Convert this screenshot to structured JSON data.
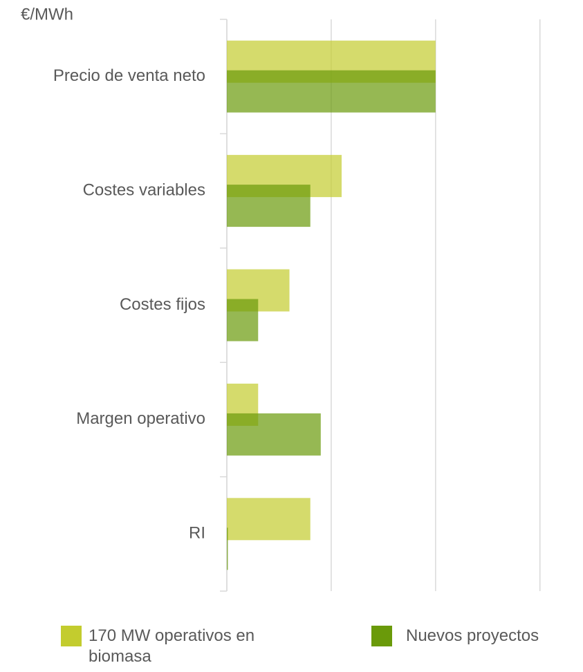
{
  "chart_data": {
    "type": "barh",
    "y_axis_label": "€/MWh",
    "categories": [
      "Precio de venta neto",
      "Costes variables",
      "Costes fijos",
      "Margen operativo",
      "RI"
    ],
    "series": [
      {
        "name": "170 MW operativos en biomasa",
        "color": "#c3cc2e",
        "values": [
          2.0,
          1.1,
          0.6,
          0.3,
          0.8
        ]
      },
      {
        "name": "Nuevos proyectos",
        "color": "#6a9a0a",
        "values": [
          2.0,
          0.8,
          0.3,
          0.9,
          0.01
        ]
      }
    ],
    "xlim": [
      0,
      3.3
    ],
    "xticks": [
      0,
      1,
      2,
      3
    ],
    "grid": true
  }
}
